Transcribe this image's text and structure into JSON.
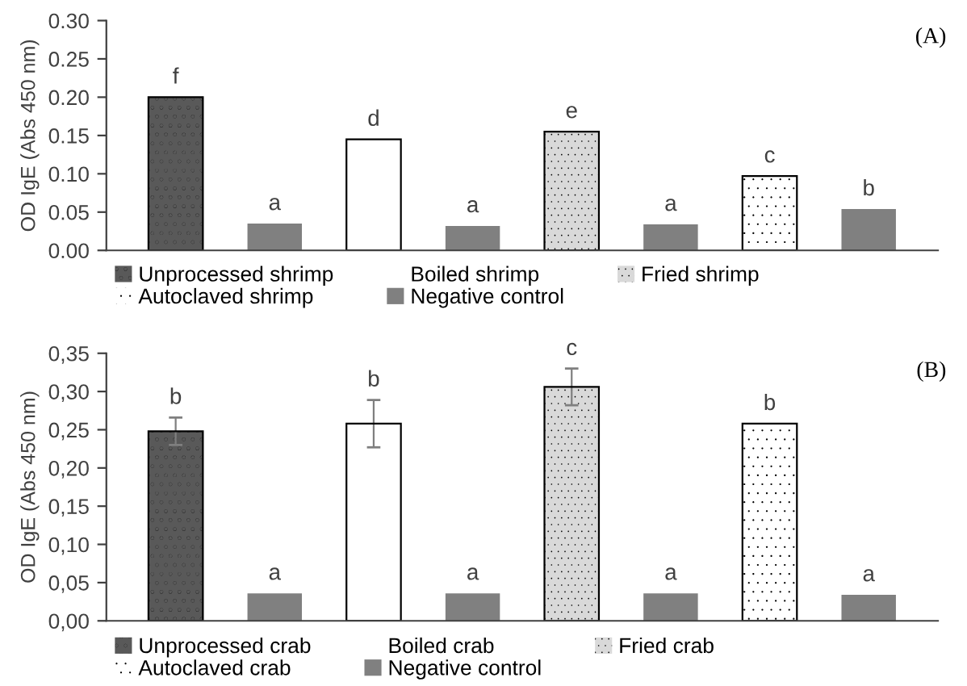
{
  "chart_data": [
    {
      "type": "bar",
      "ylabel": "OD IgE (Abs 450 nm)",
      "annotations": [
        "(A)"
      ],
      "categories": [
        null,
        null,
        null,
        null,
        null,
        null,
        null,
        null
      ],
      "ylim": [
        0,
        0.3
      ],
      "yticks": [
        {
          "value": 0,
          "label": "0.00"
        },
        {
          "value": 0.05,
          "label": "0.05"
        },
        {
          "value": 0.1,
          "label": "0.10"
        },
        {
          "value": 0.15,
          "label": "0.15"
        },
        {
          "value": 0.2,
          "label": "0.20"
        },
        {
          "value": 0.25,
          "label": "0.25"
        },
        {
          "value": 0.3,
          "label": "0.30"
        }
      ],
      "legend": "bottom",
      "series": [
        {
          "name": "Unprocessed shrimp",
          "color": "#595959",
          "values": [
            0.2,
            null,
            null,
            null,
            null,
            null,
            null,
            null
          ],
          "value_labels": [
            "f",
            null,
            null,
            null,
            null,
            null,
            null,
            null
          ]
        },
        {
          "name": "Boiled shrimp",
          "color": "#ffffff",
          "values": [
            null,
            null,
            0.145,
            null,
            null,
            null,
            null,
            null
          ],
          "value_labels": [
            null,
            null,
            "d",
            null,
            null,
            null,
            null,
            null
          ]
        },
        {
          "name": "Fried shrimp",
          "color": "#d9d9d9",
          "values": [
            null,
            null,
            null,
            null,
            0.155,
            null,
            null,
            null
          ],
          "value_labels": [
            null,
            null,
            null,
            null,
            "e",
            null,
            null,
            null
          ]
        },
        {
          "name": "Autoclaved shrimp",
          "color": "#ffffff",
          "values": [
            null,
            null,
            null,
            null,
            null,
            null,
            0.097,
            null
          ],
          "value_labels": [
            null,
            null,
            null,
            null,
            null,
            null,
            "c",
            null
          ]
        },
        {
          "name": "Negative control",
          "color": "#808080",
          "values": [
            null,
            0.035,
            null,
            0.032,
            null,
            0.034,
            null,
            0.054
          ],
          "value_labels": [
            null,
            "a",
            null,
            "a",
            null,
            "a",
            null,
            "b"
          ]
        }
      ]
    },
    {
      "type": "bar",
      "ylabel": "OD IgE (Abs 450 nm)",
      "annotations": [
        "(B)"
      ],
      "categories": [
        null,
        null,
        null,
        null,
        null,
        null,
        null,
        null
      ],
      "ylim": [
        0,
        0.35
      ],
      "yticks": [
        {
          "value": 0,
          "label": "0,00"
        },
        {
          "value": 0.05,
          "label": "0,05"
        },
        {
          "value": 0.1,
          "label": "0,10"
        },
        {
          "value": 0.15,
          "label": "0,15"
        },
        {
          "value": 0.2,
          "label": "0,20"
        },
        {
          "value": 0.25,
          "label": "0,25"
        },
        {
          "value": 0.3,
          "label": "0,30"
        },
        {
          "value": 0.35,
          "label": "0,35"
        }
      ],
      "legend": "bottom",
      "series": [
        {
          "name": "Unprocessed crab",
          "color": "#595959",
          "values": [
            0.248,
            null,
            null,
            null,
            null,
            null,
            null,
            null
          ],
          "errors": [
            0.018,
            null,
            null,
            null,
            null,
            null,
            null,
            null
          ],
          "value_labels": [
            "b",
            null,
            null,
            null,
            null,
            null,
            null,
            null
          ]
        },
        {
          "name": "Boiled crab",
          "color": "#ffffff",
          "values": [
            null,
            null,
            0.258,
            null,
            null,
            null,
            null,
            null
          ],
          "errors": [
            null,
            null,
            0.031,
            null,
            null,
            null,
            null,
            null
          ],
          "value_labels": [
            null,
            null,
            "b",
            null,
            null,
            null,
            null,
            null
          ]
        },
        {
          "name": "Fried crab",
          "color": "#d9d9d9",
          "values": [
            null,
            null,
            null,
            null,
            0.306,
            null,
            null,
            null
          ],
          "errors": [
            null,
            null,
            null,
            null,
            0.024,
            null,
            null,
            null
          ],
          "value_labels": [
            null,
            null,
            null,
            null,
            "c",
            null,
            null,
            null
          ]
        },
        {
          "name": "Autoclaved crab",
          "color": "#ffffff",
          "values": [
            null,
            null,
            null,
            null,
            null,
            null,
            0.258,
            null
          ],
          "value_labels": [
            null,
            null,
            null,
            null,
            null,
            null,
            "b",
            null
          ]
        },
        {
          "name": "Negative control",
          "color": "#808080",
          "values": [
            null,
            0.036,
            null,
            0.036,
            null,
            0.036,
            null,
            0.034
          ],
          "value_labels": [
            null,
            "a",
            null,
            "a",
            null,
            "a",
            null,
            "a"
          ]
        }
      ]
    }
  ]
}
